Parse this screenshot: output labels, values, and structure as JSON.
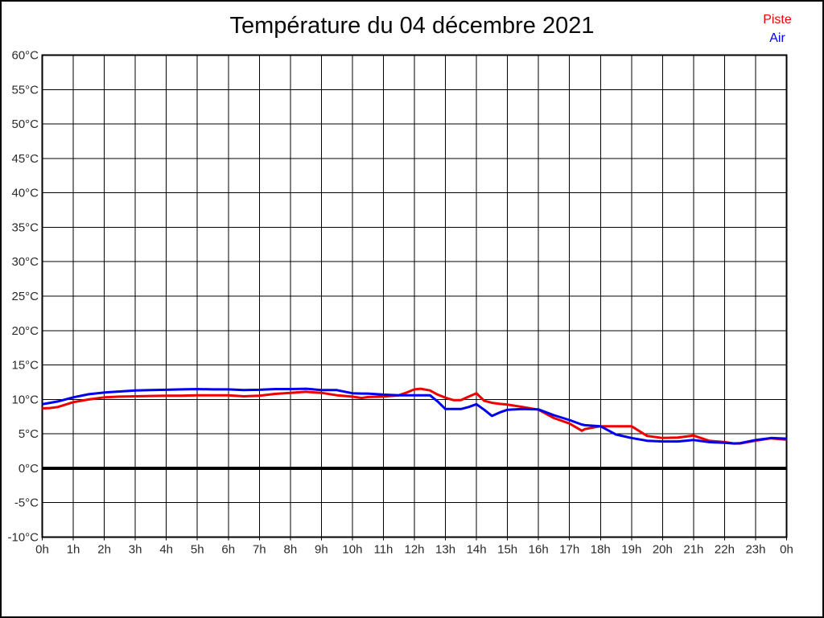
{
  "page": {
    "background_color": "#ffffff",
    "border_color": "#000000"
  },
  "legend": {
    "position": "top-right",
    "entries": [
      {
        "label": "Piste",
        "color": "#ee0000"
      },
      {
        "label": "Air",
        "color": "#0000ee"
      }
    ]
  },
  "chart_data": {
    "type": "line",
    "title": "Température du 04 décembre 2021",
    "xlabel": "",
    "ylabel": "",
    "x_unit": "hour of day",
    "y_unit": "°C",
    "xlim": [
      0,
      24
    ],
    "ylim": [
      -10,
      60
    ],
    "grid": true,
    "axis_color": "#000000",
    "text_color": "#2b2b2b",
    "zero_line_value": 0,
    "x_tick_labels": [
      "0h",
      "1h",
      "2h",
      "3h",
      "4h",
      "5h",
      "6h",
      "7h",
      "8h",
      "9h",
      "10h",
      "11h",
      "12h",
      "13h",
      "14h",
      "15h",
      "16h",
      "17h",
      "18h",
      "19h",
      "20h",
      "21h",
      "22h",
      "23h",
      "0h"
    ],
    "y_tick_labels": [
      "60°C",
      "55°C",
      "50°C",
      "45°C",
      "40°C",
      "35°C",
      "30°C",
      "25°C",
      "20°C",
      "15°C",
      "10°C",
      "5°C",
      "0°C",
      "-5°C",
      "-10°C"
    ],
    "x": [
      0,
      0.25,
      0.5,
      1,
      1.5,
      2,
      2.5,
      3,
      3.5,
      4,
      4.5,
      5,
      5.5,
      6,
      6.5,
      7,
      7.5,
      8,
      8.5,
      9,
      9.5,
      10,
      10.3,
      10.5,
      11,
      11.5,
      11.75,
      12,
      12.2,
      12.5,
      12.75,
      13,
      13.25,
      13.5,
      13.75,
      14,
      14.25,
      14.5,
      14.75,
      15,
      15.5,
      16,
      16.5,
      17,
      17.4,
      17.5,
      18,
      18.5,
      19,
      19.5,
      20,
      20.5,
      21,
      21.5,
      22,
      22.3,
      22.5,
      23,
      23.5,
      24
    ],
    "series": [
      {
        "name": "Piste",
        "color": "#ee0000",
        "values": [
          8.7,
          8.75,
          8.9,
          9.6,
          10.0,
          10.3,
          10.4,
          10.45,
          10.5,
          10.55,
          10.55,
          10.6,
          10.6,
          10.6,
          10.45,
          10.55,
          10.8,
          10.95,
          11.1,
          10.95,
          10.6,
          10.4,
          10.2,
          10.35,
          10.4,
          10.6,
          11.0,
          11.45,
          11.55,
          11.3,
          10.7,
          10.25,
          9.9,
          9.9,
          10.4,
          10.9,
          9.8,
          9.5,
          9.35,
          9.25,
          8.9,
          8.5,
          7.3,
          6.5,
          5.45,
          5.7,
          6.1,
          6.1,
          6.1,
          4.7,
          4.4,
          4.45,
          4.75,
          4.0,
          3.8,
          3.6,
          3.6,
          4.0,
          4.35,
          4.15
        ]
      },
      {
        "name": "Air",
        "color": "#0000ee",
        "values": [
          9.3,
          9.5,
          9.7,
          10.3,
          10.75,
          11.0,
          11.15,
          11.3,
          11.35,
          11.4,
          11.45,
          11.5,
          11.45,
          11.45,
          11.35,
          11.4,
          11.5,
          11.5,
          11.55,
          11.35,
          11.35,
          10.9,
          10.85,
          10.85,
          10.7,
          10.6,
          10.6,
          10.6,
          10.6,
          10.6,
          9.7,
          8.6,
          8.6,
          8.6,
          8.9,
          9.3,
          8.5,
          7.6,
          8.1,
          8.5,
          8.6,
          8.55,
          7.7,
          7.0,
          6.35,
          6.25,
          6.1,
          4.9,
          4.4,
          4.0,
          3.9,
          3.9,
          4.1,
          3.8,
          3.7,
          3.6,
          3.65,
          4.1,
          4.4,
          4.3
        ]
      }
    ]
  }
}
